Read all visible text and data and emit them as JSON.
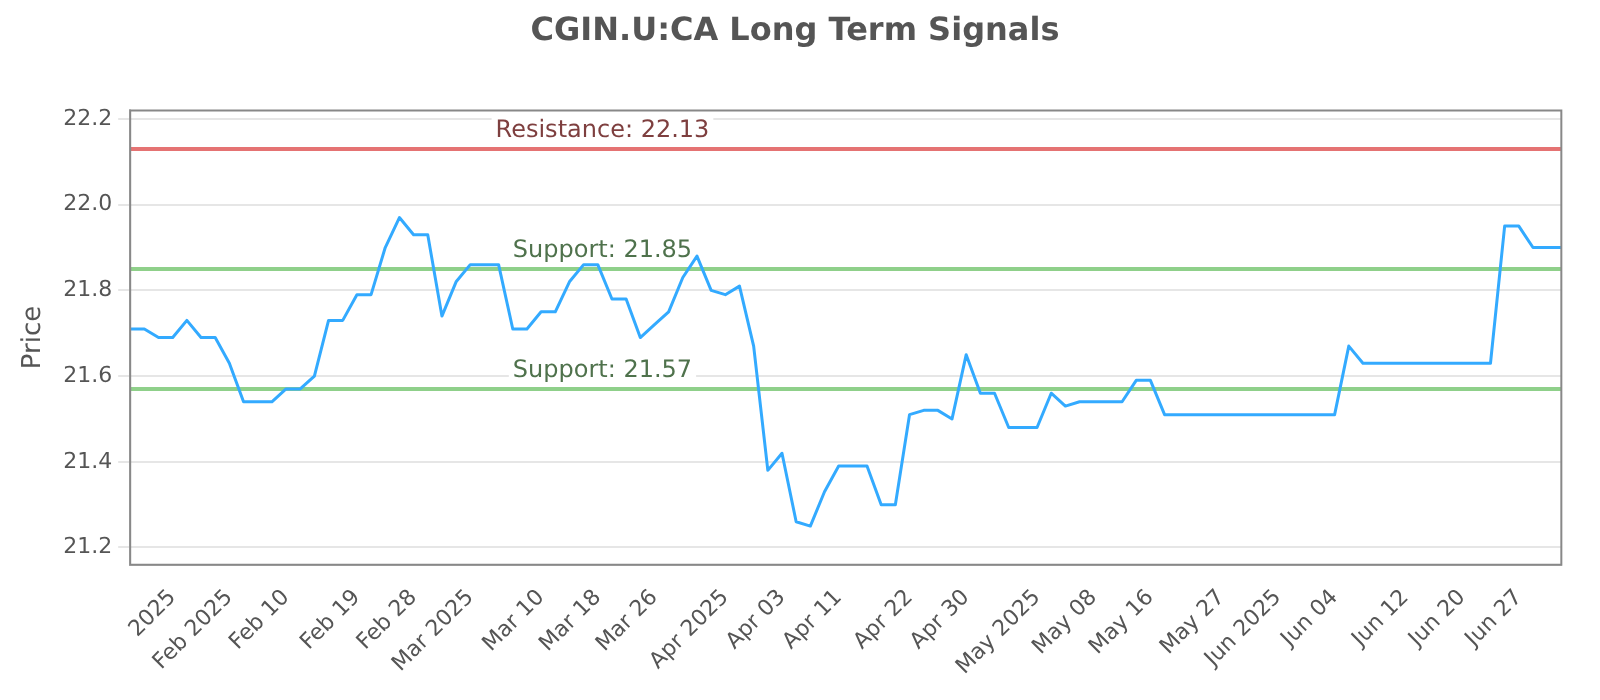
{
  "chart_data": {
    "type": "line",
    "title": "CGIN.U:CA Long Term Signals",
    "ylabel": "Price",
    "categories": [
      null,
      null,
      null,
      "2025",
      null,
      null,
      null,
      "Feb 2025",
      null,
      null,
      null,
      "Feb 10",
      null,
      null,
      null,
      null,
      "Feb 19",
      null,
      null,
      null,
      "Feb 28",
      null,
      null,
      null,
      "Mar 2025",
      null,
      null,
      null,
      null,
      "Mar 10",
      null,
      null,
      null,
      "Mar 18",
      null,
      null,
      null,
      "Mar 26",
      null,
      null,
      null,
      null,
      "Apr 2025",
      null,
      null,
      null,
      "Apr 03",
      null,
      null,
      null,
      "Apr 11",
      null,
      null,
      null,
      null,
      "Apr 22",
      null,
      null,
      null,
      "Apr 30",
      null,
      null,
      null,
      null,
      "May 2025",
      null,
      null,
      null,
      "May 08",
      null,
      null,
      null,
      "May 16",
      null,
      null,
      null,
      null,
      "May 27",
      null,
      null,
      null,
      "Jun 2025",
      null,
      null,
      null,
      "Jun 04",
      null,
      null,
      null,
      null,
      "Jun 12",
      null,
      null,
      null,
      "Jun 20",
      null,
      null,
      null,
      "Jun 27",
      null,
      null,
      null
    ],
    "series": [
      {
        "color": "#33aaff",
        "values": [
          21.71,
          21.71,
          21.69,
          21.69,
          21.73,
          21.69,
          21.69,
          21.63,
          21.54,
          21.54,
          21.54,
          21.57,
          21.57,
          21.6,
          21.73,
          21.73,
          21.79,
          21.79,
          21.9,
          21.97,
          21.93,
          21.93,
          21.74,
          21.82,
          21.86,
          21.86,
          21.86,
          21.71,
          21.71,
          21.75,
          21.75,
          21.82,
          21.86,
          21.86,
          21.78,
          21.78,
          21.69,
          21.72,
          21.75,
          21.83,
          21.88,
          21.8,
          21.79,
          21.81,
          21.67,
          21.38,
          21.42,
          21.26,
          21.25,
          21.33,
          21.39,
          21.39,
          21.39,
          21.3,
          21.3,
          21.51,
          21.52,
          21.52,
          21.5,
          21.65,
          21.56,
          21.56,
          21.48,
          21.48,
          21.48,
          21.56,
          21.53,
          21.54,
          21.54,
          21.54,
          21.54,
          21.59,
          21.59,
          21.51,
          21.51,
          21.51,
          21.51,
          21.51,
          21.51,
          21.51,
          21.51,
          21.51,
          21.51,
          21.51,
          21.51,
          21.51,
          21.67,
          21.63,
          21.63,
          21.63,
          21.63,
          21.63,
          21.63,
          21.63,
          21.63,
          21.63,
          21.63,
          21.95,
          21.95,
          21.9,
          21.9,
          21.9
        ]
      }
    ],
    "ylim": [
      21.16,
      22.22
    ],
    "yticks": [
      {
        "value": 21.2,
        "label": "21.2"
      },
      {
        "value": 21.4,
        "label": "21.4"
      },
      {
        "value": 21.6,
        "label": "21.6"
      },
      {
        "value": 21.8,
        "label": "21.8"
      },
      {
        "value": 22,
        "label": "22.0"
      },
      {
        "value": 22.2,
        "label": "22.2"
      }
    ],
    "grid": "y",
    "marker": "none",
    "line_style": "solid",
    "legend": false,
    "ref_lines": [
      {
        "axis": "y",
        "value": 22.13,
        "label": "Resistance: 22.13",
        "color": "#e57373"
      },
      {
        "axis": "y",
        "value": 21.85,
        "label": "Support: 21.85",
        "color": "#8fd08a"
      },
      {
        "axis": "y",
        "value": 21.57,
        "label": "Support: 21.57",
        "color": "#8fd08a"
      }
    ]
  }
}
